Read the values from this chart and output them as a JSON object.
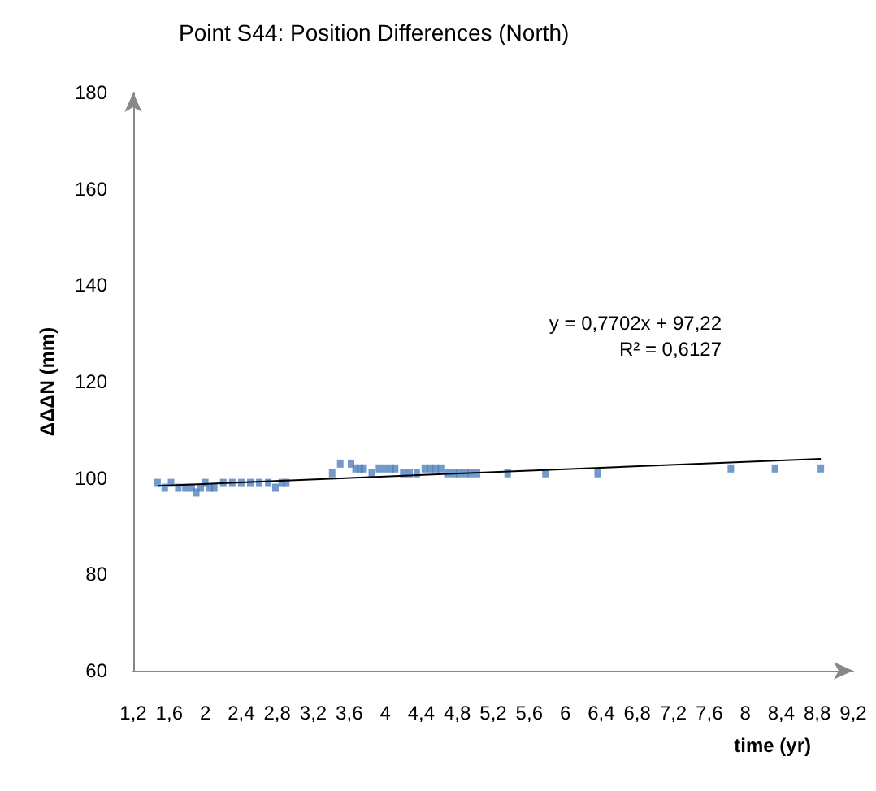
{
  "chart_data": {
    "type": "scatter",
    "title": "Point S44: Position Differences (North)",
    "xlabel": "time (yr)",
    "ylabel": "ΔΔΔN (mm)",
    "xlim": [
      1.2,
      9.2
    ],
    "xticks": [
      {
        "value": 1.2,
        "label": "1,2"
      },
      {
        "value": 1.6,
        "label": "1,6"
      },
      2,
      {
        "value": 2.4,
        "label": "2,4"
      },
      {
        "value": 2.8,
        "label": "2,8"
      },
      {
        "value": 3.2,
        "label": "3,2"
      },
      {
        "value": 3.6,
        "label": "3,6"
      },
      4,
      {
        "value": 4.4,
        "label": "4,4"
      },
      {
        "value": 4.8,
        "label": "4,8"
      },
      {
        "value": 5.2,
        "label": "5,2"
      },
      {
        "value": 5.6,
        "label": "5,6"
      },
      6,
      {
        "value": 6.4,
        "label": "6,4"
      },
      {
        "value": 6.8,
        "label": "6,8"
      },
      {
        "value": 7.2,
        "label": "7,2"
      },
      {
        "value": 7.6,
        "label": "7,6"
      },
      8,
      {
        "value": 8.4,
        "label": "8,4"
      },
      {
        "value": 8.8,
        "label": "8,8"
      },
      {
        "value": 9.2,
        "label": "9,2"
      }
    ],
    "ylim": [
      60,
      180
    ],
    "yticks": [
      60,
      80,
      100,
      120,
      140,
      160,
      180
    ],
    "grid": false,
    "marker": "square",
    "series": [
      {
        "color": "#4f81bd",
        "x": [
          1.47,
          1.55,
          1.62,
          1.7,
          1.78,
          1.85,
          1.9,
          1.95,
          2.0,
          2.05,
          2.1,
          2.2,
          2.3,
          2.4,
          2.5,
          2.6,
          2.7,
          2.78,
          2.85,
          2.9,
          3.41,
          3.5,
          3.62,
          3.67,
          3.72,
          3.76,
          3.85,
          3.93,
          4.0,
          4.06,
          4.11,
          4.2,
          4.27,
          4.35,
          4.44,
          4.5,
          4.56,
          4.62,
          4.69,
          4.76,
          4.82,
          4.89,
          4.95,
          5.02,
          5.36,
          5.78,
          6.36,
          7.84,
          8.33,
          8.84
        ],
        "values": [
          99,
          98,
          99,
          98,
          98,
          98,
          97,
          98,
          99,
          98,
          98,
          99,
          99,
          99,
          99,
          99,
          99,
          98,
          99,
          99,
          101,
          103,
          103,
          102,
          102,
          102,
          101,
          102,
          102,
          102,
          102,
          101,
          101,
          101,
          102,
          102,
          102,
          102,
          101,
          101,
          101,
          101,
          101,
          101,
          101,
          101,
          101,
          102,
          102,
          102
        ]
      },
      {
        "type": "line",
        "color": "#000000",
        "marker": "none",
        "x": [
          1.47,
          8.84
        ],
        "values": [
          98.4,
          104
        ]
      }
    ],
    "annotations": [
      "y = 0,7702x + 97,22",
      "R² = 0,6127"
    ]
  }
}
